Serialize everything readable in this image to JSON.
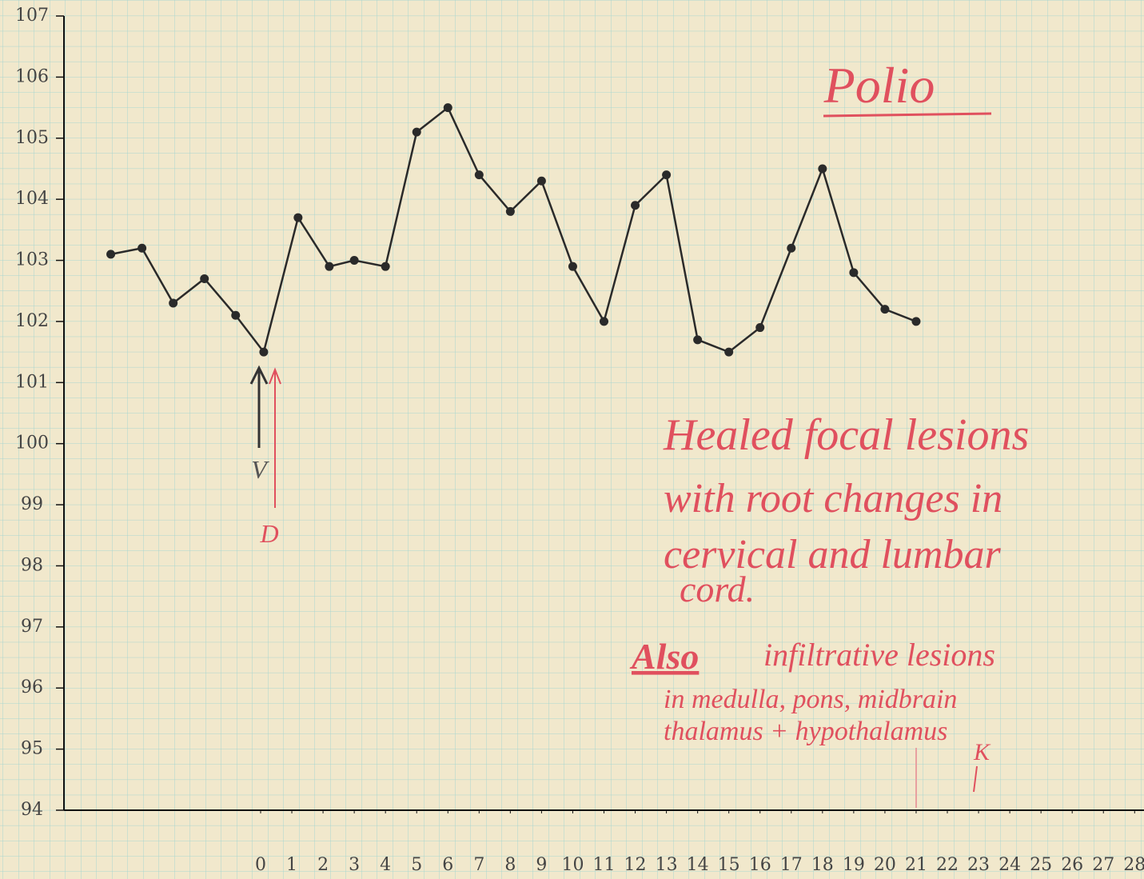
{
  "chart_data": {
    "type": "line",
    "title": "Polio",
    "x": [
      -4.8,
      -3.8,
      -2.8,
      -1.8,
      -0.8,
      0.1,
      1.2,
      2.2,
      3,
      4,
      5,
      6,
      7,
      8,
      9,
      10,
      11,
      12,
      13,
      14,
      15,
      16,
      17,
      18,
      19,
      20,
      21
    ],
    "series": [
      {
        "color": "#2a2a2a",
        "values": [
          103.1,
          103.2,
          102.3,
          102.7,
          102.1,
          101.5,
          103.7,
          102.9,
          103.0,
          102.9,
          105.1,
          105.5,
          104.4,
          103.8,
          104.3,
          102.9,
          102.0,
          103.9,
          104.4,
          101.7,
          101.5,
          101.9,
          103.2,
          104.5,
          102.8,
          102.2,
          102.0
        ]
      }
    ],
    "xlim": [
      -6.3,
      28.3
    ],
    "xticks": [
      0,
      1,
      2,
      3,
      4,
      5,
      6,
      7,
      8,
      9,
      10,
      11,
      12,
      13,
      14,
      15,
      16,
      17,
      18,
      19,
      20,
      21,
      22,
      23,
      24,
      25,
      26,
      27,
      28
    ],
    "ylim": [
      94,
      107
    ],
    "yticks": [
      94,
      95,
      96,
      97,
      98,
      99,
      100,
      101,
      102,
      103,
      104,
      105,
      106,
      107
    ],
    "grid": true,
    "annotations": [
      "V",
      "D",
      "Healed focal lesions",
      "with root changes in",
      "cervical and lumbar",
      "cord.",
      "Also",
      "infiltrative lesions",
      "in medulla, pons, midbrain",
      "thalamus + hypothalamus",
      "K"
    ]
  }
}
